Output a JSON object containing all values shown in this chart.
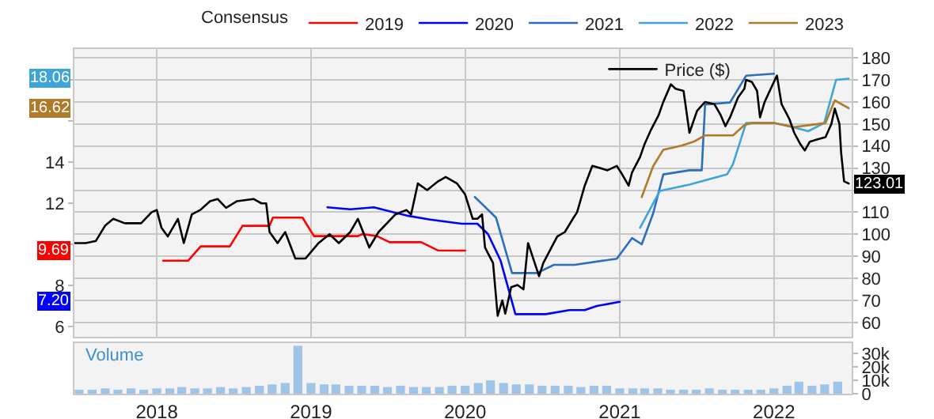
{
  "chart_data": [
    {
      "type": "line",
      "xlim": [
        "2017-06-20",
        "2022-07-04"
      ],
      "xticks": [
        "2018",
        "2019",
        "2020",
        "2021",
        "2022"
      ],
      "ylim": [
        5.5,
        19.5
      ],
      "yticks": [
        6,
        8,
        {
          "value": 10,
          "label": null
        },
        12,
        14,
        {
          "value": 16,
          "label": null
        },
        {
          "value": 18,
          "label": null
        }
      ],
      "y2lim": [
        53.5,
        184
      ],
      "y2ticks": [
        60,
        70,
        80,
        90,
        100,
        110,
        {
          "value": 120,
          "label": null
        },
        130,
        140,
        150,
        160,
        170,
        180
      ],
      "grid": true,
      "legend": "top right",
      "legend_title": "Consensus",
      "tick_labels": "y",
      "annotations": [
        {
          "text": "18.06",
          "y": 18.06
        },
        {
          "text": "16.62",
          "y": 16.62
        },
        {
          "text": "9.69",
          "y": 9.69
        },
        {
          "text": "7.20",
          "y": 7.2
        }
      ],
      "series": [
        {
          "name": "2019",
          "color": "#ff0000",
          "x": [
            "2018-01-16",
            "2018-03-16",
            "2018-04-15",
            "2018-06-23",
            "2018-07-23",
            "2018-09-25",
            "2018-10-03",
            "2018-12-12",
            "2019-01-08",
            "2019-04-22",
            "2019-05-03",
            "2019-06-06",
            "2019-07-06",
            "2019-09-19",
            "2019-10-29",
            "2020-01-01"
          ],
          "values": [
            9.2,
            9.2,
            9.9,
            9.9,
            10.9,
            10.9,
            11.3,
            11.3,
            10.4,
            10.4,
            10.5,
            10.4,
            10.1,
            10.1,
            9.7,
            9.69
          ]
        },
        {
          "name": "2020",
          "color": "#0000ff",
          "x": [
            "2019-02-09",
            "2019-04-04",
            "2019-05-30",
            "2019-08-15",
            "2019-10-10",
            "2019-12-24",
            "2020-01-30",
            "2020-02-24",
            "2020-03-25",
            "2020-04-29",
            "2020-07-10",
            "2020-09-04",
            "2020-10-10",
            "2020-11-08",
            "2021-01-01"
          ],
          "values": [
            11.8,
            11.7,
            11.8,
            11.4,
            11.2,
            11.0,
            11.0,
            10.5,
            9.2,
            6.6,
            6.6,
            6.8,
            6.8,
            7.0,
            7.2
          ]
        },
        {
          "name": "2021",
          "color": "#2a6ebd",
          "x": [
            "2020-01-24",
            "2020-03-14",
            "2020-03-31",
            "2020-04-21",
            "2020-06-19",
            "2020-07-29",
            "2020-09-16",
            "2020-12-25",
            "2021-01-30",
            "2021-02-22",
            "2021-03-21",
            "2021-04-14",
            "2021-06-15",
            "2021-07-14",
            "2021-07-22",
            "2021-09-19",
            "2021-10-27",
            "2022-01-01"
          ],
          "values": [
            12.3,
            11.3,
            10.1,
            8.6,
            8.6,
            9.0,
            9.0,
            9.3,
            10.3,
            10.0,
            11.5,
            13.4,
            13.6,
            13.6,
            16.8,
            16.9,
            18.2,
            18.3
          ]
        },
        {
          "name": "2022",
          "color": "#3da5d9",
          "x": [
            "2021-02-18",
            "2021-04-06",
            "2021-06-15",
            "2021-09-12",
            "2021-09-26",
            "2021-10-27",
            "2022-01-01",
            "2022-02-14",
            "2022-03-23",
            "2022-04-30",
            "2022-05-28",
            "2022-06-27"
          ],
          "values": [
            10.8,
            12.6,
            12.9,
            13.4,
            13.9,
            15.9,
            15.9,
            15.7,
            15.5,
            15.9,
            18.0,
            18.06
          ]
        },
        {
          "name": "2023",
          "color": "#b07a2a",
          "x": [
            "2021-02-22",
            "2021-03-21",
            "2021-04-14",
            "2021-05-27",
            "2021-06-26",
            "2021-07-22",
            "2021-09-26",
            "2021-10-23",
            "2021-11-10",
            "2022-01-01",
            "2022-02-18",
            "2022-05-03",
            "2022-05-25",
            "2022-06-27"
          ],
          "values": [
            12.3,
            13.8,
            14.6,
            14.8,
            15.0,
            15.3,
            15.3,
            15.8,
            15.9,
            15.9,
            15.7,
            15.9,
            17.0,
            16.62
          ]
        },
        {
          "name": "Price ($)",
          "color": "#000000",
          "axis": "y2",
          "x": [
            "2017-06-20",
            "2017-07-17",
            "2017-08-10",
            "2017-09-01",
            "2017-09-20",
            "2017-10-17",
            "2017-11-25",
            "2017-12-20",
            "2018-01-01",
            "2018-01-12",
            "2018-01-27",
            "2018-02-20",
            "2018-03-06",
            "2018-03-25",
            "2018-04-14",
            "2018-05-07",
            "2018-05-25",
            "2018-06-14",
            "2018-07-10",
            "2018-08-18",
            "2018-09-06",
            "2018-09-17",
            "2018-09-25",
            "2018-10-14",
            "2018-11-01",
            "2018-11-25",
            "2018-12-19",
            "2019-01-19",
            "2019-02-14",
            "2019-03-08",
            "2019-04-04",
            "2019-04-22",
            "2019-05-19",
            "2019-06-10",
            "2019-07-20",
            "2019-08-15",
            "2019-08-26",
            "2019-09-11",
            "2019-10-03",
            "2019-10-29",
            "2019-11-16",
            "2019-12-13",
            "2020-01-01",
            "2020-01-19",
            "2020-01-30",
            "2020-02-10",
            "2020-02-17",
            "2020-03-07",
            "2020-03-18",
            "2020-03-29",
            "2020-04-05",
            "2020-04-19",
            "2020-05-04",
            "2020-05-18",
            "2020-05-29",
            "2020-06-24",
            "2020-07-04",
            "2020-08-06",
            "2020-08-24",
            "2020-09-12",
            "2020-09-22",
            "2020-10-10",
            "2020-10-28",
            "2020-11-15",
            "2020-12-03",
            "2020-12-25",
            "2021-01-04",
            "2021-01-22",
            "2021-01-30",
            "2021-02-18",
            "2021-03-01",
            "2021-03-15",
            "2021-04-03",
            "2021-04-14",
            "2021-05-02",
            "2021-05-13",
            "2021-06-01",
            "2021-06-15",
            "2021-07-03",
            "2021-07-22",
            "2021-08-13",
            "2021-08-28",
            "2021-09-08",
            "2021-09-19",
            "2021-10-08",
            "2021-10-23",
            "2021-10-27",
            "2021-11-10",
            "2021-11-22",
            "2021-11-29",
            "2021-12-10",
            "2021-12-22",
            "2022-01-08",
            "2022-01-19",
            "2022-01-30",
            "2022-02-07",
            "2022-02-18",
            "2022-03-04",
            "2022-03-15",
            "2022-03-27",
            "2022-04-14",
            "2022-05-03",
            "2022-05-17",
            "2022-05-25",
            "2022-06-05",
            "2022-06-09",
            "2022-06-16",
            "2022-06-27"
          ],
          "values": [
            96,
            96,
            97,
            104,
            107,
            105,
            105,
            110,
            111,
            103,
            99,
            107,
            96,
            109,
            111,
            115,
            116,
            112,
            115,
            116,
            114,
            114,
            101,
            96,
            101,
            89,
            89,
            96,
            100,
            96,
            101,
            107,
            94,
            101,
            109,
            111,
            109,
            123,
            120,
            124,
            126,
            123,
            118,
            107,
            107,
            109,
            94,
            87,
            63,
            70,
            64,
            76,
            77,
            75,
            96,
            81,
            87,
            99,
            101,
            107,
            110,
            122,
            131,
            130,
            129,
            131,
            128,
            122,
            128,
            135,
            141,
            147,
            154,
            160,
            168,
            166,
            165,
            146,
            156,
            160,
            159,
            154,
            149,
            153,
            162,
            166,
            170,
            169,
            165,
            153,
            160,
            165,
            172,
            159,
            155,
            152,
            146,
            141,
            138,
            142,
            143,
            144,
            150,
            157,
            150,
            137,
            124,
            123.01
          ],
          "value_labels": [
            null,
            null,
            null,
            null,
            null,
            null,
            null,
            null,
            null,
            null,
            null,
            null,
            null,
            null,
            null,
            null,
            null,
            null,
            null,
            null,
            null,
            null,
            null,
            null,
            null,
            null,
            null,
            null,
            null,
            null,
            null,
            null,
            null,
            null,
            null,
            null,
            null,
            null,
            null,
            null,
            null,
            null,
            null,
            null,
            null,
            null,
            null,
            null,
            null,
            null,
            null,
            null,
            null,
            null,
            null,
            null,
            null,
            null,
            null,
            null,
            null,
            null,
            null,
            null,
            null,
            null,
            null,
            null,
            null,
            null,
            null,
            null,
            null,
            null,
            null,
            null,
            null,
            null,
            null,
            null,
            null,
            null,
            null,
            null,
            null,
            null,
            null,
            null,
            null,
            null,
            null,
            null,
            null,
            null,
            null,
            null,
            null,
            null,
            null,
            null,
            null,
            null,
            null,
            null,
            null,
            null,
            null,
            "123.01"
          ]
        }
      ]
    },
    {
      "type": "bar",
      "xlim": [
        "2017-06-20",
        "2022-07-04"
      ],
      "xticks": [
        "2018",
        "2019",
        "2020",
        "2021",
        "2022"
      ],
      "y2lim": [
        0,
        38000
      ],
      "y2ticks": [
        0,
        {
          "value": 10000,
          "label": "10k"
        },
        {
          "value": 20000,
          "label": "20k"
        },
        {
          "value": 30000,
          "label": "30k"
        }
      ],
      "annotations": [
        "Volume"
      ],
      "series": [
        {
          "color": "#9ec5e8",
          "axis": "y2",
          "x": [
            "2017-07",
            "2017-08",
            "2017-09",
            "2017-10",
            "2017-11",
            "2017-12",
            "2018-01",
            "2018-02",
            "2018-03",
            "2018-04",
            "2018-05",
            "2018-06",
            "2018-07",
            "2018-08",
            "2018-09",
            "2018-10",
            "2018-11",
            "2018-12",
            "2019-01",
            "2019-02",
            "2019-03",
            "2019-04",
            "2019-05",
            "2019-06",
            "2019-07",
            "2019-08",
            "2019-09",
            "2019-10",
            "2019-11",
            "2019-12",
            "2020-01",
            "2020-02",
            "2020-03",
            "2020-04",
            "2020-05",
            "2020-06",
            "2020-07",
            "2020-08",
            "2020-09",
            "2020-10",
            "2020-11",
            "2020-12",
            "2021-01",
            "2021-02",
            "2021-03",
            "2021-04",
            "2021-05",
            "2021-06",
            "2021-07",
            "2021-08",
            "2021-09",
            "2021-10",
            "2021-11",
            "2021-12",
            "2022-01",
            "2022-02",
            "2022-03",
            "2022-04",
            "2022-05",
            "2022-06"
          ],
          "values": [
            3000,
            3000,
            4000,
            3000,
            4000,
            3000,
            4000,
            4000,
            5000,
            4000,
            4000,
            5000,
            4000,
            5000,
            6000,
            7000,
            8000,
            36000,
            8000,
            7000,
            7000,
            6000,
            6000,
            6000,
            5000,
            6000,
            5000,
            5000,
            5000,
            6000,
            6000,
            8000,
            10000,
            8000,
            7000,
            7000,
            6000,
            6000,
            6000,
            5000,
            6000,
            6000,
            4000,
            4000,
            4000,
            4000,
            3000,
            3000,
            3000,
            4000,
            3000,
            3000,
            3000,
            3000,
            4000,
            6000,
            9000,
            6000,
            7000,
            9000
          ]
        }
      ]
    }
  ]
}
